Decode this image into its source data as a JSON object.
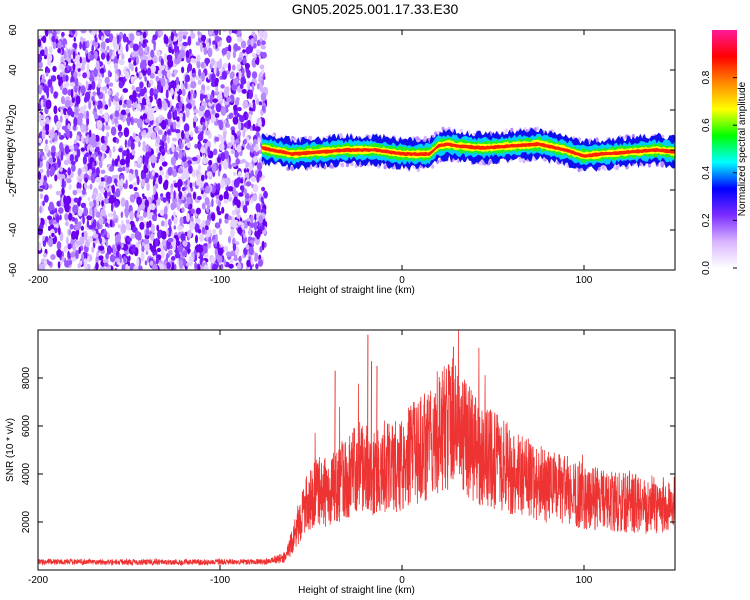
{
  "title": "GN05.2025.001.17.33.E30",
  "chart_data": [
    {
      "type": "heatmap",
      "xlabel": "Height of straight line (km)",
      "ylabel": "Frequency (Hz)",
      "xlim": [
        -200,
        150
      ],
      "ylim": [
        -60,
        60
      ],
      "xticks": [
        -200,
        -100,
        0,
        100
      ],
      "yticks": [
        -60,
        -40,
        -20,
        0,
        20,
        40,
        60
      ],
      "noise_region_x": [
        -200,
        -75
      ],
      "ridge": {
        "x": [
          -77,
          -60,
          -45,
          -30,
          -15,
          0,
          15,
          20,
          25,
          30,
          45,
          60,
          75,
          90,
          100,
          110,
          125,
          140,
          150
        ],
        "freq": [
          1,
          -2,
          -1,
          0,
          0,
          -2,
          -2,
          2,
          3,
          2,
          1,
          2,
          3,
          0,
          -3,
          -2,
          -1,
          0,
          -1
        ]
      },
      "colorbar": {
        "label": "Normalized spectral amplitude",
        "range": [
          0.0,
          1.0
        ],
        "ticks": [
          0.0,
          0.2,
          0.4,
          0.6,
          0.8
        ],
        "colors": [
          "#ffffff",
          "#d8b4ff",
          "#7b2cff",
          "#0000ff",
          "#00ffff",
          "#00ff00",
          "#ffff00",
          "#ff8800",
          "#ff0000",
          "#ff1a9a"
        ]
      }
    },
    {
      "type": "line",
      "xlabel": "Height of straight line (km)",
      "ylabel": "SNR (10 * v/v)",
      "xlim": [
        -200,
        150
      ],
      "ylim": [
        0,
        10000
      ],
      "xticks": [
        -200,
        -100,
        0,
        100
      ],
      "yticks": [
        2000,
        4000,
        6000,
        8000
      ],
      "color": "#ee3333",
      "series": [
        {
          "x": [
            -200,
            -150,
            -100,
            -75,
            -65,
            -60,
            -55,
            -50,
            -45,
            -40,
            -35,
            -30,
            -25,
            -20,
            -15,
            -10,
            -5,
            0,
            5,
            10,
            15,
            20,
            25,
            28,
            30,
            35,
            40,
            50,
            60,
            70,
            80,
            90,
            100,
            110,
            120,
            130,
            140,
            150
          ],
          "values": [
            350,
            330,
            330,
            340,
            500,
            1200,
            2400,
            3000,
            3300,
            3200,
            3600,
            3900,
            4200,
            4300,
            4000,
            4200,
            4300,
            4400,
            4800,
            5000,
            5300,
            5800,
            6000,
            6300,
            6000,
            5500,
            5000,
            4600,
            4200,
            3800,
            3500,
            3300,
            3100,
            2900,
            2800,
            2800,
            2700,
            2700
          ]
        }
      ],
      "spikes": [
        {
          "x": -37,
          "value": 8300
        },
        {
          "x": -19,
          "value": 9800
        },
        {
          "x": -17,
          "value": 8700
        },
        {
          "x": -14,
          "value": 8500
        },
        {
          "x": 28,
          "value": 9300
        }
      ]
    }
  ]
}
